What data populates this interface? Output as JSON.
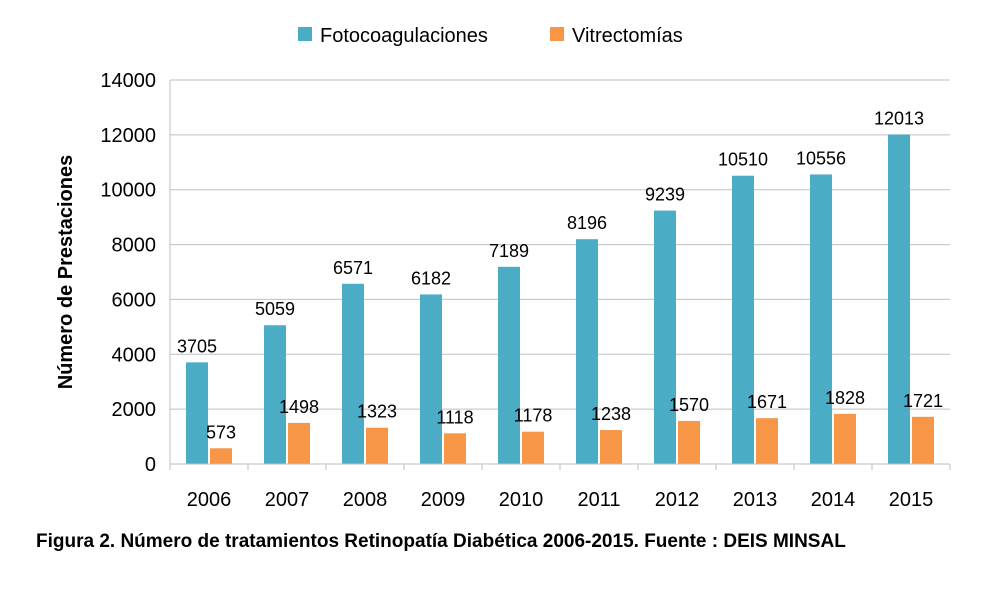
{
  "chart_data": {
    "type": "bar",
    "categories": [
      "2006",
      "2007",
      "2008",
      "2009",
      "2010",
      "2011",
      "2012",
      "2013",
      "2014",
      "2015"
    ],
    "series": [
      {
        "name": "Fotocoagulaciones",
        "color": "#4BACC6",
        "values": [
          3705,
          5059,
          6571,
          6182,
          7189,
          8196,
          9239,
          10510,
          10556,
          12013
        ]
      },
      {
        "name": "Vitrectomías",
        "color": "#F79646",
        "values": [
          573,
          1498,
          1323,
          1118,
          1178,
          1238,
          1570,
          1671,
          1828,
          1721
        ]
      }
    ],
    "xlabel": "",
    "ylabel": "Número de Prestaciones",
    "ylim": [
      0,
      14000
    ],
    "yticks": [
      0,
      2000,
      4000,
      6000,
      8000,
      10000,
      12000,
      14000
    ],
    "grid": "horizontal",
    "legend": "top-center",
    "data_labels": true
  },
  "caption": "Figura 2. Número de tratamientos Retinopatía Diabética 2006-2015. Fuente : DEIS MINSAL"
}
